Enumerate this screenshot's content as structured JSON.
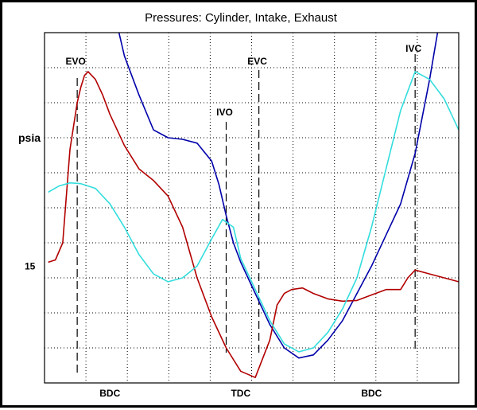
{
  "chart_data": {
    "type": "line",
    "title": "Pressures: Cylinder, Intake, Exhaust",
    "ylabel": "psia",
    "y_ticks": [
      {
        "label": "15",
        "value": 15
      }
    ],
    "x_ticks": [
      {
        "label": "BDC",
        "value": 180
      },
      {
        "label": "TDC",
        "value": 360
      },
      {
        "label": "BDC",
        "value": 540
      }
    ],
    "xlim": [
      90,
      660
    ],
    "ylim": [
      0,
      45
    ],
    "grid": true,
    "events": [
      {
        "label": "EVO",
        "x": 135
      },
      {
        "label": "IVO",
        "x": 340
      },
      {
        "label": "EVC",
        "x": 385
      },
      {
        "label": "IVC",
        "x": 600
      }
    ],
    "series": [
      {
        "color": "#0000aa",
        "x": [
          185,
          200,
          220,
          240,
          260,
          280,
          300,
          320,
          330,
          340,
          350,
          360,
          380,
          400,
          420,
          440,
          460,
          480,
          500,
          520,
          540,
          560,
          580,
          600,
          620,
          640
        ],
        "y": [
          48,
          42,
          37,
          32.5,
          31.5,
          31.3,
          30.8,
          28.5,
          25.5,
          21.5,
          18,
          15.5,
          11.5,
          7.5,
          4.5,
          3.2,
          3.6,
          5.5,
          8,
          11.5,
          15,
          19,
          23,
          29.5,
          39,
          50
        ]
      },
      {
        "color": "#b20000",
        "x": [
          95,
          105,
          115,
          125,
          135,
          140,
          145,
          150,
          160,
          170,
          180,
          200,
          220,
          240,
          260,
          280,
          300,
          320,
          340,
          360,
          380,
          400,
          410,
          420,
          430,
          445,
          460,
          480,
          500,
          520,
          540,
          560,
          580,
          590,
          600,
          620,
          640,
          660
        ],
        "y": [
          15.5,
          15.8,
          18,
          30,
          36,
          38,
          39.5,
          40,
          39,
          37,
          34.5,
          30.5,
          27.5,
          26,
          24,
          20,
          13.5,
          8.5,
          4.5,
          1.5,
          0.7,
          5.5,
          10,
          11.5,
          12,
          12.2,
          11.5,
          10.8,
          10.5,
          10.6,
          11.3,
          12,
          12,
          13.5,
          14.5,
          14,
          13.5,
          13
        ]
      },
      {
        "color": "#33dddd",
        "x": [
          95,
          110,
          125,
          140,
          160,
          180,
          200,
          220,
          240,
          260,
          280,
          300,
          320,
          335,
          350,
          360,
          380,
          400,
          420,
          440,
          460,
          480,
          500,
          520,
          540,
          560,
          580,
          600,
          620,
          640,
          660
        ],
        "y": [
          24.5,
          25.3,
          25.7,
          25.6,
          25,
          23,
          20,
          16.5,
          14,
          13,
          13.5,
          15,
          18.5,
          21,
          20,
          16,
          12,
          8,
          5,
          4,
          4.5,
          6.5,
          9.5,
          13.5,
          20,
          27.5,
          35,
          40,
          39,
          36.5,
          32.5
        ]
      }
    ]
  }
}
